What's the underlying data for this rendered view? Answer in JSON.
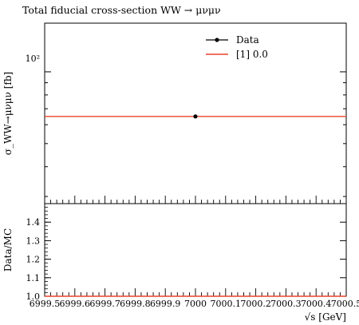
{
  "chart_data": [
    {
      "type": "scatter",
      "title": "Total fiducial cross-section WW → μνμν",
      "ylabel": "σ_WW→μνμν [fb]",
      "y_scale": "log",
      "y_tick_label": "10²",
      "legend": {
        "placement": "top-right",
        "entries": [
          "Data",
          "[1] 0.0"
        ]
      },
      "series": [
        {
          "name": "Data",
          "kind": "points",
          "color": "#000000",
          "x": [
            7000
          ],
          "y": [
            65
          ]
        },
        {
          "name": "[1] 0.0",
          "kind": "line",
          "color": "#e8442a",
          "x": [
            6999.5,
            7000.5
          ],
          "y": [
            65,
            65
          ]
        }
      ],
      "xlim": [
        6999.5,
        7000.5
      ],
      "ylim": [
        28,
        160
      ]
    },
    {
      "type": "line",
      "ylabel": "Data/MC",
      "xlabel": "√s [GeV]",
      "yticks": [
        "1.0",
        "1.1",
        "1.2",
        "1.3",
        "1.4"
      ],
      "xtick_labels": [
        "6999.5",
        "6999.6",
        "6999.7",
        "6999.8",
        "6999.9",
        "7000",
        "7000.1",
        "7000.2",
        "7000.3",
        "7000.4",
        "7000.5"
      ],
      "x": [
        6999.5,
        6999.6,
        6999.7,
        6999.8,
        6999.9,
        7000,
        7000.1,
        7000.2,
        7000.3,
        7000.4,
        7000.5
      ],
      "reference_line": 1.0,
      "ylim": [
        1.0,
        1.5
      ]
    }
  ],
  "colors": {
    "data": "#000000",
    "mc": "#e8442a",
    "axes": "#000000"
  }
}
